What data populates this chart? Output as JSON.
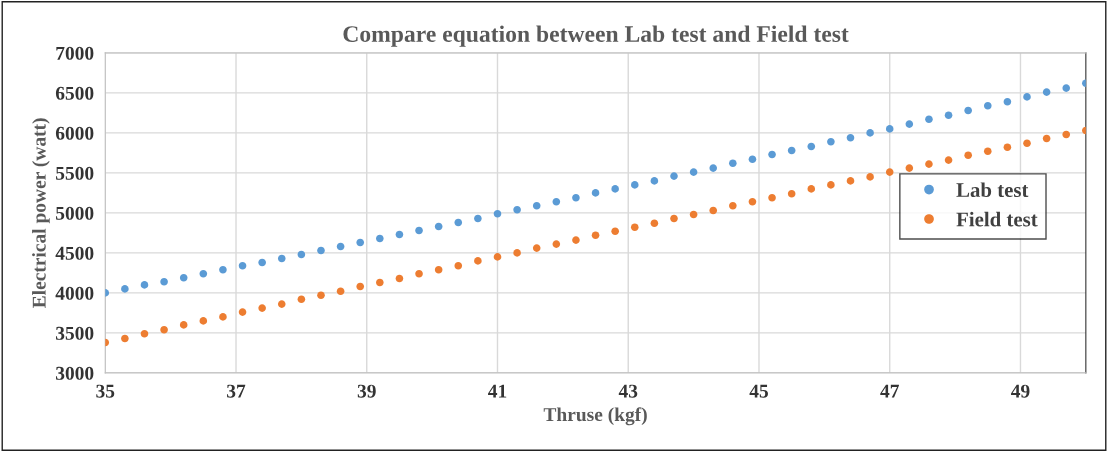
{
  "chart_data": {
    "type": "scatter",
    "title": "Compare equation between Lab test and Field test",
    "xlabel": "Thruse (kgf)",
    "ylabel": "Electrical power (watt)",
    "x": [
      35,
      35.3,
      35.6,
      35.9,
      36.2,
      36.5,
      36.8,
      37.1,
      37.4,
      37.7,
      38,
      38.3,
      38.6,
      38.9,
      39.2,
      39.5,
      39.8,
      40.1,
      40.4,
      40.7,
      41,
      41.3,
      41.6,
      41.9,
      42.2,
      42.5,
      42.8,
      43.1,
      43.4,
      43.7,
      44,
      44.3,
      44.6,
      44.9,
      45.2,
      45.5,
      45.8,
      46.1,
      46.4,
      46.7,
      47,
      47.3,
      47.6,
      47.9,
      48.2,
      48.5,
      48.8,
      49.1,
      49.4,
      49.7,
      50
    ],
    "series": [
      {
        "name": "Lab test",
        "color": "#5b9bd5",
        "values": [
          4000,
          4050,
          4100,
          4140,
          4190,
          4240,
          4290,
          4340,
          4380,
          4430,
          4480,
          4530,
          4580,
          4630,
          4680,
          4730,
          4780,
          4830,
          4880,
          4930,
          4990,
          5040,
          5090,
          5140,
          5190,
          5250,
          5300,
          5350,
          5400,
          5460,
          5510,
          5560,
          5620,
          5670,
          5730,
          5780,
          5830,
          5890,
          5940,
          6000,
          6050,
          6110,
          6170,
          6220,
          6280,
          6340,
          6390,
          6450,
          6510,
          6560,
          6620
        ]
      },
      {
        "name": "Field test",
        "color": "#ed7d31",
        "values": [
          3380,
          3430,
          3490,
          3540,
          3600,
          3650,
          3700,
          3760,
          3810,
          3860,
          3920,
          3970,
          4020,
          4080,
          4130,
          4180,
          4240,
          4290,
          4340,
          4400,
          4450,
          4500,
          4560,
          4610,
          4660,
          4720,
          4770,
          4820,
          4870,
          4930,
          4980,
          5030,
          5090,
          5140,
          5190,
          5240,
          5300,
          5350,
          5400,
          5450,
          5510,
          5560,
          5610,
          5660,
          5720,
          5770,
          5820,
          5870,
          5930,
          5980,
          6030
        ]
      }
    ],
    "xlim": [
      35,
      50
    ],
    "xticks": [
      35,
      37,
      39,
      41,
      43,
      45,
      47,
      49
    ],
    "ylim": [
      3000,
      7000
    ],
    "yticks": [
      3000,
      3500,
      4000,
      4500,
      5000,
      5500,
      6000,
      6500,
      7000
    ],
    "grid": true,
    "legend": "right",
    "marker": "circle"
  }
}
